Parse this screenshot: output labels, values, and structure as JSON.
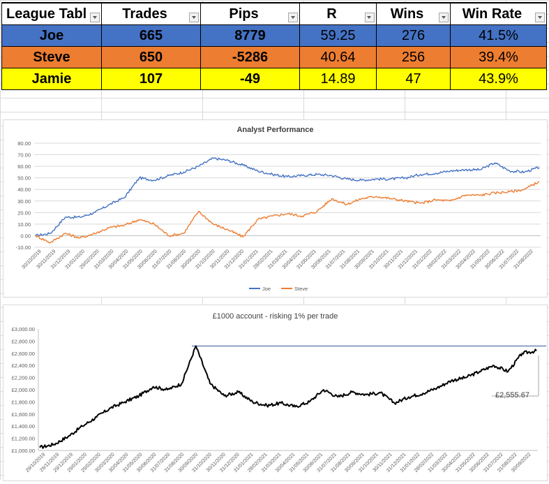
{
  "table": {
    "headers": [
      "League Tabl",
      "Trades",
      "Pips",
      "R",
      "Wins",
      "Win Rate"
    ],
    "rows": [
      {
        "name": "Joe",
        "trades": "665",
        "pips": "8779",
        "r": "59.25",
        "wins": "276",
        "win_rate": "41.5%",
        "color": "#4472c4"
      },
      {
        "name": "Steve",
        "trades": "650",
        "pips": "-5286",
        "r": "40.64",
        "wins": "256",
        "win_rate": "39.4%",
        "color": "#ed7d31"
      },
      {
        "name": "Jamie",
        "trades": "107",
        "pips": "-49",
        "r": "14.89",
        "wins": "47",
        "win_rate": "43.9%",
        "color": "#ffff00"
      }
    ]
  },
  "chart_data": [
    {
      "type": "line",
      "title": "Analyst Performance",
      "ylim": [
        -10,
        80
      ],
      "yticks": [
        "-10.00",
        "0.00",
        "10.00",
        "20.00",
        "30.00",
        "40.00",
        "50.00",
        "60.00",
        "70.00",
        "80.00"
      ],
      "xticks": [
        "30/10/2019",
        "30/11/2019",
        "31/12/2019",
        "31/01/2020",
        "29/02/2020",
        "31/03/2020",
        "30/04/2020",
        "31/05/2020",
        "30/06/2020",
        "31/07/2020",
        "31/08/2020",
        "30/09/2020",
        "31/10/2020",
        "30/11/2020",
        "31/12/2020",
        "31/01/2021",
        "28/02/2021",
        "31/03/2021",
        "30/04/2021",
        "31/05/2021",
        "30/06/2021",
        "31/07/2021",
        "31/08/2021",
        "30/09/2021",
        "31/10/2021",
        "30/11/2021",
        "31/12/2021",
        "31/01/2022",
        "28/02/2022",
        "31/03/2022",
        "30/04/2022",
        "31/05/2022",
        "30/06/2022",
        "31/07/2022",
        "31/08/2022"
      ],
      "grid": true,
      "legend": "bottom",
      "series": [
        {
          "name": "Joe",
          "color": "#4472c4",
          "values": [
            0,
            2,
            16,
            16,
            20,
            27,
            33,
            50,
            48,
            52,
            55,
            60,
            67,
            65,
            61,
            56,
            53,
            51,
            52,
            53,
            52,
            49,
            48,
            49,
            49,
            50,
            53,
            54,
            56,
            57,
            57,
            63,
            56,
            55,
            59
          ]
        },
        {
          "name": "Steve",
          "color": "#ed7d31",
          "values": [
            0,
            -6,
            2,
            -2,
            2,
            7,
            9,
            14,
            10,
            0,
            2,
            21,
            10,
            5,
            -1,
            14,
            17,
            19,
            17,
            21,
            32,
            27,
            32,
            34,
            32,
            30,
            28,
            31,
            30,
            35,
            35,
            37,
            38,
            40,
            47
          ]
        }
      ]
    },
    {
      "type": "line",
      "title": "£1000 account - risking 1% per trade",
      "ylim": [
        1000,
        3000
      ],
      "yticks": [
        "£1,000.00",
        "£1,200.00",
        "£1,400.00",
        "£1,600.00",
        "£1,800.00",
        "£2,000.00",
        "£2,200.00",
        "£2,400.00",
        "£2,600.00",
        "£2,800.00",
        "£3,000.00"
      ],
      "xticks": [
        "29/10/2019",
        "29/11/2019",
        "29/12/2019",
        "29/01/2020",
        "29/02/2020",
        "30/03/2020",
        "30/04/2020",
        "31/05/2020",
        "30/06/2020",
        "31/07/2020",
        "31/08/2020",
        "30/09/2020",
        "31/10/2020",
        "30/11/2020",
        "31/12/2020",
        "31/01/2021",
        "28/02/2021",
        "31/03/2021",
        "30/04/2021",
        "31/05/2021",
        "30/06/2021",
        "31/07/2021",
        "31/08/2021",
        "30/09/2021",
        "31/10/2021",
        "30/11/2021",
        "31/12/2021",
        "31/01/2022",
        "28/02/2022",
        "31/03/2022",
        "30/04/2022",
        "31/05/2022",
        "30/06/2022",
        "31/07/2022",
        "31/08/2022",
        "30/09/2022"
      ],
      "grid": false,
      "series": [
        {
          "name": "",
          "color": "#000000",
          "values": [
            1050,
            1100,
            1230,
            1400,
            1550,
            1700,
            1800,
            1900,
            2050,
            2000,
            2100,
            2720,
            2100,
            1900,
            1960,
            1800,
            1740,
            1780,
            1720,
            1800,
            2000,
            1880,
            1960,
            1920,
            1950,
            1780,
            1880,
            1940,
            2030,
            2150,
            2200,
            2300,
            2400,
            2300,
            2600,
            2640
          ]
        }
      ],
      "reference_line": 2720,
      "annotation": "£2,555.67"
    }
  ]
}
